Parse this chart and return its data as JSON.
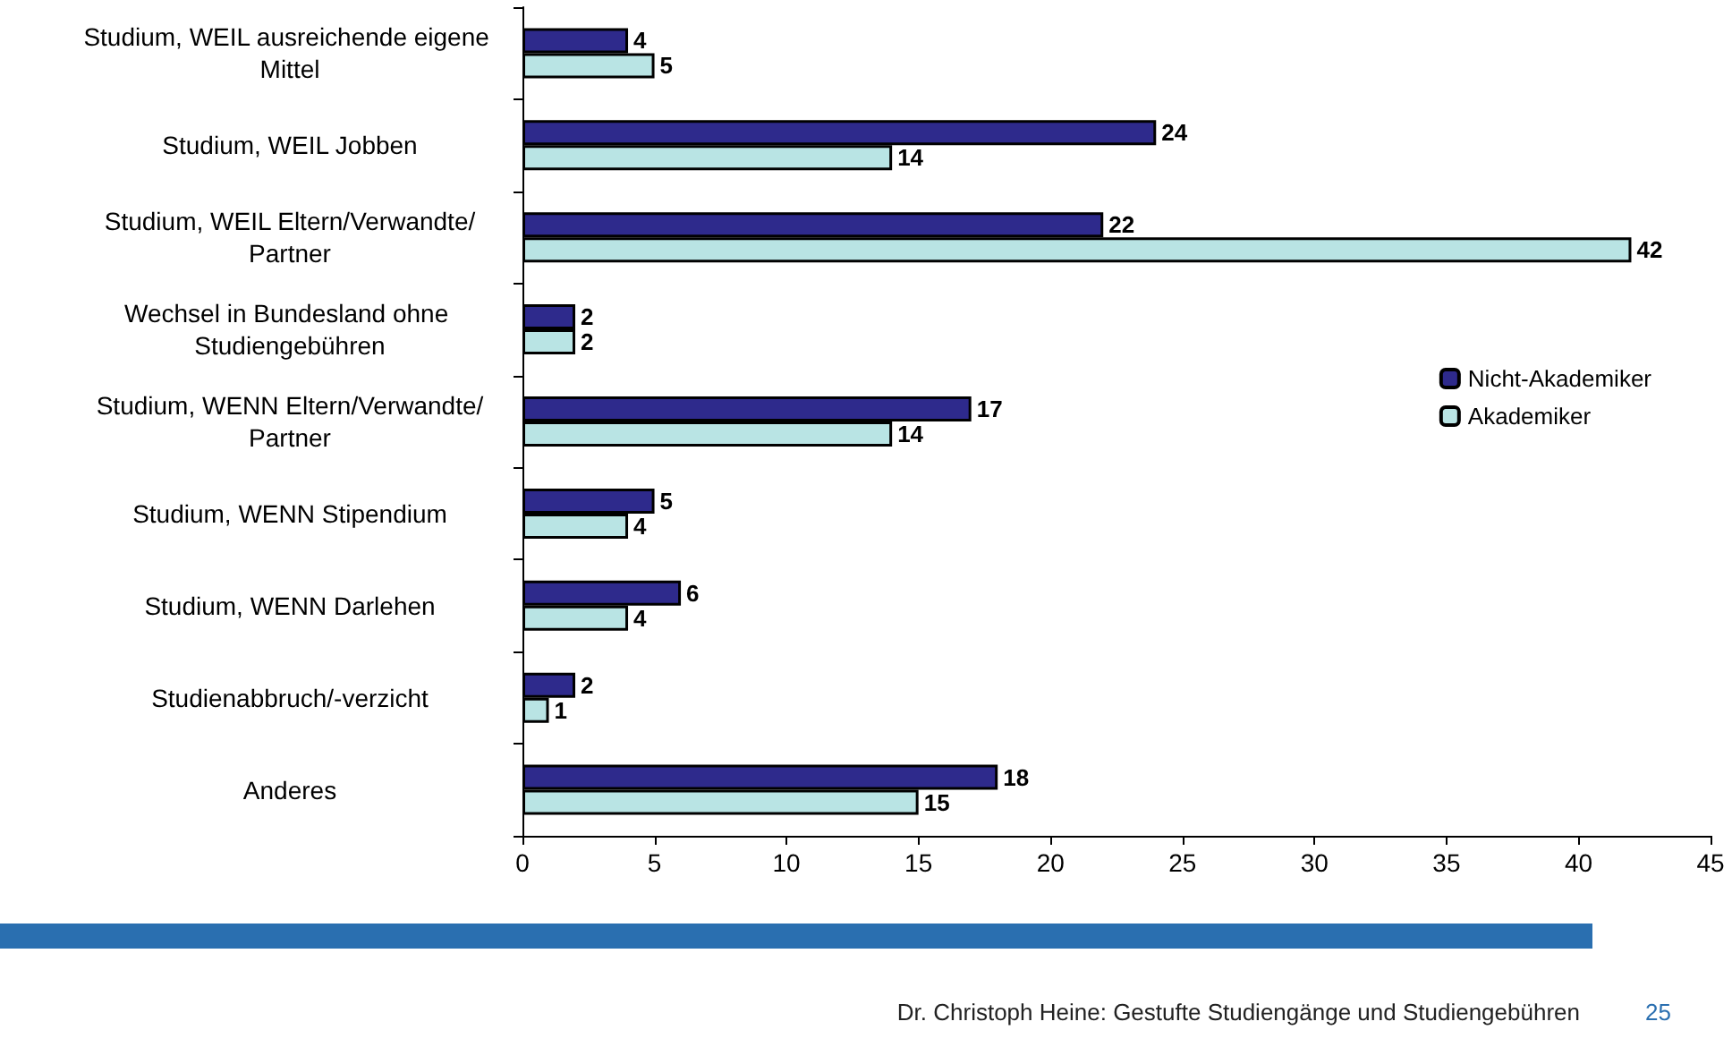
{
  "chart_data": {
    "type": "bar",
    "orientation": "horizontal",
    "categories": [
      "Studium, WEIL ausreichende eigene Mittel",
      "Studium, WEIL Jobben",
      "Studium, WEIL Eltern/Verwandte/Partner",
      "Wechsel in Bundesland ohne Studiengebühren",
      "Studium, WENN Eltern/Verwandte/Partner",
      "Studium, WENN Stipendium",
      "Studium, WENN Darlehen",
      "Studienabbruch/-verzicht",
      "Anderes"
    ],
    "series": [
      {
        "name": "Nicht-Akademiker",
        "color": "#2e2a8c",
        "values": [
          4,
          24,
          22,
          2,
          17,
          5,
          6,
          2,
          18
        ]
      },
      {
        "name": "Akademiker",
        "color": "#b9e4e4",
        "values": [
          5,
          14,
          42,
          2,
          14,
          4,
          4,
          1,
          15
        ]
      }
    ],
    "xlim": [
      0,
      45
    ],
    "xticks": [
      0,
      5,
      10,
      15,
      20,
      25,
      30,
      35,
      40,
      45
    ],
    "grid": false,
    "legend": "right",
    "data_labels": true,
    "annotations": [
      "Dr. Christoph Heine: Gestufte Studiengänge und Studiengebühren",
      "25"
    ]
  }
}
